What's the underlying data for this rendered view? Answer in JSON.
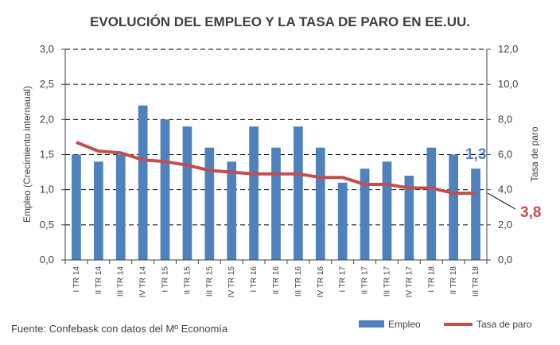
{
  "chart_data": {
    "type": "bar",
    "title": "EVOLUCIÓN DEL EMPLEO Y LA TASA DE PARO EN EE.UU.",
    "categories": [
      "I TR 14",
      "II TR 14",
      "III TR 14",
      "IV TR 14",
      "I TR 15",
      "II TR 15",
      "III TR 15",
      "IV TR 15",
      "I TR 16",
      "II TR 16",
      "III TR 16",
      "IV TR 16",
      "I TR 17",
      "II TR 17",
      "III TR 17",
      "IV TR 17",
      "I TR 18",
      "II TR 18",
      "III TR 18"
    ],
    "series": [
      {
        "name": "Empleo",
        "type": "bar",
        "axis": "left",
        "color": "#4f81bd",
        "values": [
          1.5,
          1.4,
          1.5,
          2.2,
          2.0,
          1.9,
          1.6,
          1.4,
          1.9,
          1.6,
          1.9,
          1.6,
          1.1,
          1.3,
          1.4,
          1.2,
          1.6,
          1.5,
          1.3
        ]
      },
      {
        "name": "Tasa de paro",
        "type": "line",
        "axis": "right",
        "color": "#c0504d",
        "values": [
          6.7,
          6.2,
          6.1,
          5.7,
          5.6,
          5.4,
          5.1,
          5.0,
          4.9,
          4.9,
          4.9,
          4.7,
          4.7,
          4.3,
          4.3,
          4.1,
          4.1,
          3.8,
          3.8
        ]
      }
    ],
    "ylabel_left": "Empleo (Crecimiento internaual)",
    "ylabel_right": "Tasa de paro",
    "ylim_left": [
      0,
      3.0
    ],
    "ylim_right": [
      0,
      12.0
    ],
    "yticks_left": [
      "0,0",
      "0,5",
      "1,0",
      "1,5",
      "2,0",
      "2,5",
      "3,0"
    ],
    "yticks_right": [
      "0,0",
      "2,0",
      "4,0",
      "6,0",
      "8,0",
      "10,0",
      "12,0"
    ],
    "grid": "horizontal dashed",
    "legend_position": "bottom-right",
    "annotations": [
      {
        "text": "1,3",
        "color": "#4f81bd"
      },
      {
        "text": "3,8",
        "color": "#c0504d"
      }
    ],
    "source": "Fuente: Confebask con datos del Mº Economía"
  }
}
